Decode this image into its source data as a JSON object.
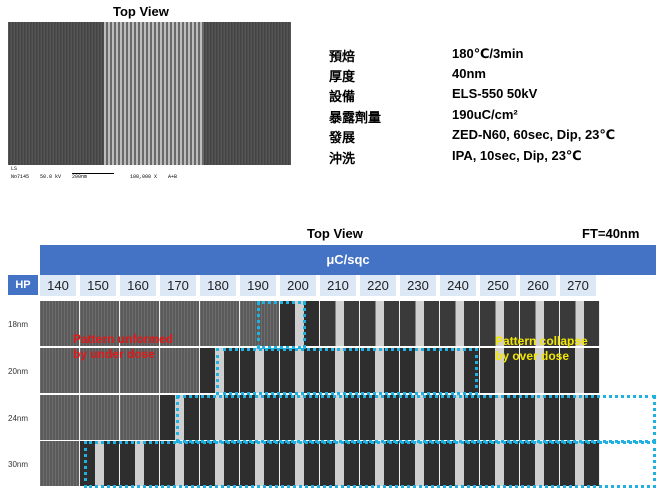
{
  "top_section": {
    "title": "Top View",
    "sem_bar": [
      "LS",
      "No7145",
      "50.0 kV",
      "200nm",
      "100,000 X",
      "A+B"
    ]
  },
  "params": [
    {
      "label": "預焙",
      "value": "180℃/3min"
    },
    {
      "label": "厚度",
      "value": "40nm"
    },
    {
      "label": "設備",
      "value": "ELS-550 50kV"
    },
    {
      "label": "暴露劑量",
      "value": "190uC/cm²"
    },
    {
      "label": "發展",
      "value": "ZED-N60, 60sec, Dip, 23℃"
    },
    {
      "label": "沖洗",
      "value": "IPA, 10sec, Dip, 23℃"
    }
  ],
  "dose_matrix": {
    "title": "Top View",
    "film_thickness": "FT=40nm",
    "unit_header": "μC/sqc",
    "hp_header": "HP",
    "doses": [
      "140",
      "150",
      "160",
      "170",
      "180",
      "190",
      "200",
      "210",
      "220",
      "230",
      "240",
      "250",
      "260",
      "270"
    ],
    "half_pitches": [
      "18nm",
      "20nm",
      "24nm",
      "30nm"
    ],
    "under_dose_label": [
      "Pattern unformed",
      "by under dose"
    ],
    "over_dose_label": [
      "Pattern  collapse",
      "by  over dose"
    ]
  },
  "colors": {
    "header_blue": "#4472c4",
    "dose_cell": "#dde8f7",
    "highlight_box": "#1fb1e0",
    "under_dose_text": "#e01818",
    "over_dose_text": "#f2e600"
  }
}
